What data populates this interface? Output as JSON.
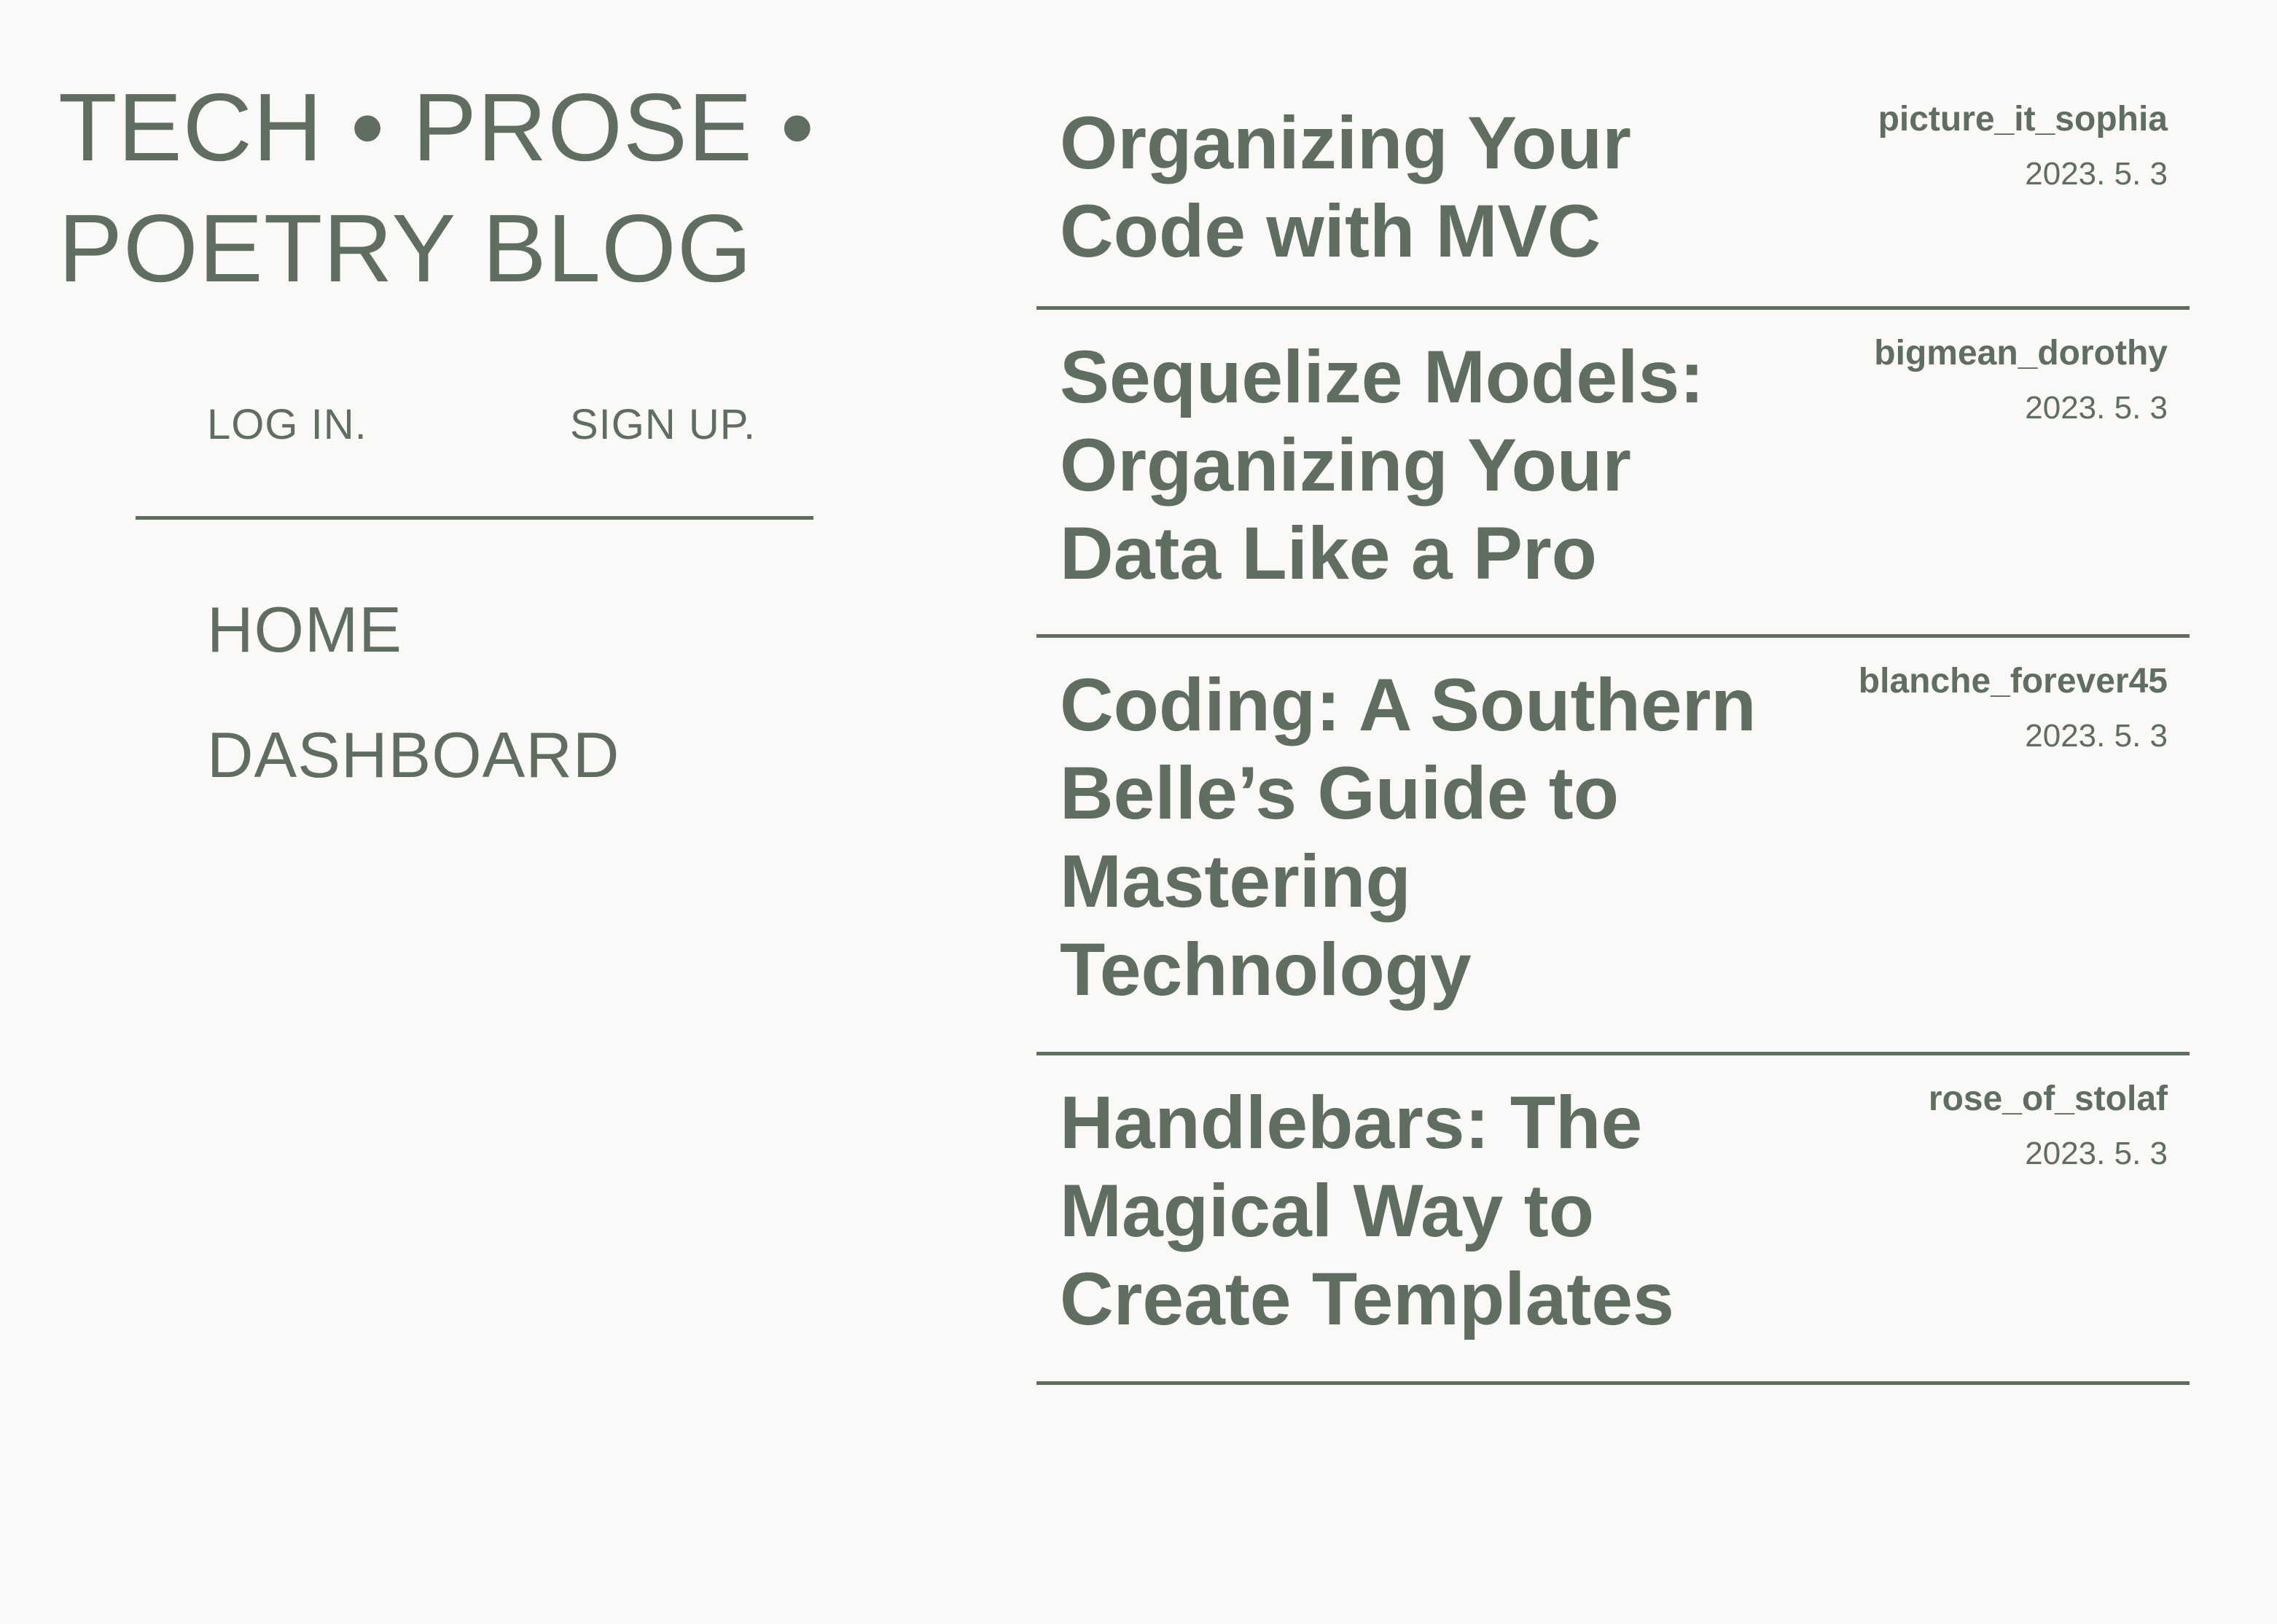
{
  "site": {
    "title": "TECH • PROSE • POETRY BLOG"
  },
  "auth": {
    "login_label": "LOG IN.",
    "signup_label": "SIGN UP."
  },
  "nav": {
    "items": [
      {
        "label": "HOME"
      },
      {
        "label": "DASHBOARD"
      }
    ]
  },
  "posts": [
    {
      "title": "Organizing Your Code with MVC",
      "author": "picture_it_sophia",
      "date": "2023. 5. 3"
    },
    {
      "title": "Sequelize Models: Organizing Your Data Like a Pro",
      "author": "bigmean_dorothy",
      "date": "2023. 5. 3"
    },
    {
      "title": "Coding: A Southern Belle’s Guide to Mastering Technology",
      "author": "blanche_forever45",
      "date": "2023. 5. 3"
    },
    {
      "title": "Handlebars: The Magical Way to Create Templates",
      "author": "rose_of_stolaf",
      "date": "2023. 5. 3"
    }
  ],
  "colors": {
    "background": "#fbf9f8",
    "text": "#5f6e60",
    "divider": "#5f6e60"
  }
}
